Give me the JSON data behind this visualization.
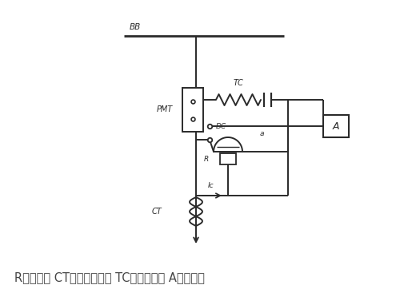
{
  "bg_color": "#ffffff",
  "line_color": "#2a2a2a",
  "title_text": "R：继电器 CT：电流互感器 TC：跳闸线圈 A：报警器",
  "title_fontsize": 10.5,
  "figsize": [
    5.0,
    3.62
  ],
  "dpi": 100,
  "BB_label": "BB",
  "PMT_label": "PMT",
  "TC_label": "TC",
  "DC_label": "DC",
  "a_label": "a",
  "R_label": "R",
  "Ic_label": "Ic",
  "CT_label": "CT",
  "A_label": "A"
}
